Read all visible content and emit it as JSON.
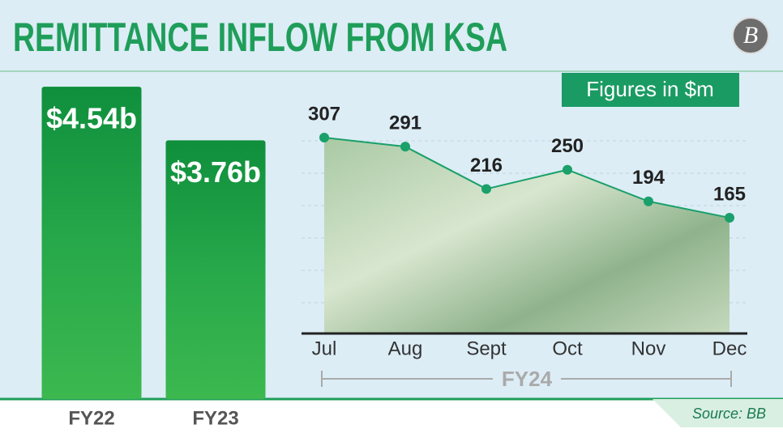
{
  "title": "REMITTANCE INFLOW FROM KSA",
  "units_note": "Figures in $m",
  "source": "Source: BB",
  "logo": "B",
  "chart_data": [
    {
      "type": "bar",
      "categories": [
        "FY22",
        "FY23"
      ],
      "values": [
        4.54,
        3.76
      ],
      "value_labels": [
        "$4.54b",
        "$3.76b"
      ],
      "color": "#1f9e45",
      "ylim": [
        0,
        5
      ]
    },
    {
      "type": "line",
      "categories": [
        "Jul",
        "Aug",
        "Sept",
        "Oct",
        "Nov",
        "Dec"
      ],
      "values": [
        307,
        291,
        216,
        250,
        194,
        165
      ],
      "x_label": "FY24",
      "color": "#1aa06a",
      "ylim": [
        -40,
        360
      ]
    }
  ]
}
